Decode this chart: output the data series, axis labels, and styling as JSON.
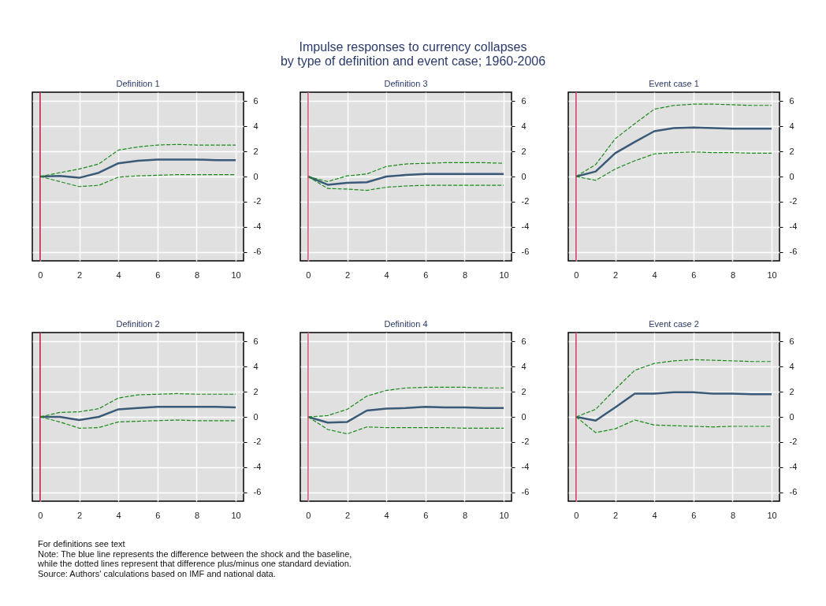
{
  "chart_data": [
    {
      "type": "other",
      "title": "Impulse responses to currency collapses",
      "subtitle": "by type of definition and event case; 1960-2006"
    },
    {
      "type": "line",
      "title": "Definition 1",
      "x": [
        0,
        1,
        2,
        3,
        4,
        5,
        6,
        7,
        8,
        9,
        10
      ],
      "xlim": [
        -0.4,
        10.4
      ],
      "xticks": [
        0,
        2,
        4,
        6,
        8,
        10
      ],
      "ylim": [
        -6.7,
        6.7
      ],
      "yticks": [
        -6,
        -4,
        -2,
        0,
        2,
        4,
        6
      ],
      "grid": true,
      "ref_lines": [
        {
          "axis": "x",
          "value": 0,
          "color": "#b0103a"
        }
      ],
      "series": [
        {
          "color": "#3a5a78",
          "line_style": "solid",
          "values": [
            0,
            0.05,
            -0.1,
            0.3,
            1.05,
            1.25,
            1.35,
            1.35,
            1.35,
            1.3,
            1.3
          ]
        },
        {
          "color": "#1a8a1a",
          "line_style": "dashed",
          "values": [
            0,
            0.3,
            0.6,
            1.0,
            2.1,
            2.35,
            2.5,
            2.55,
            2.5,
            2.5,
            2.5
          ]
        },
        {
          "color": "#1a8a1a",
          "line_style": "dashed",
          "values": [
            0,
            -0.4,
            -0.8,
            -0.7,
            -0.05,
            0.05,
            0.1,
            0.15,
            0.15,
            0.15,
            0.15
          ]
        }
      ]
    },
    {
      "type": "line",
      "title": "Definition 3",
      "x": [
        0,
        1,
        2,
        3,
        4,
        5,
        6,
        7,
        8,
        9,
        10
      ],
      "xlim": [
        -0.4,
        10.4
      ],
      "xticks": [
        0,
        2,
        4,
        6,
        8,
        10
      ],
      "ylim": [
        -6.7,
        6.7
      ],
      "yticks": [
        -6,
        -4,
        -2,
        0,
        2,
        4,
        6
      ],
      "grid": true,
      "ref_lines": [
        {
          "axis": "x",
          "value": 0,
          "color": "#d05070"
        }
      ],
      "series": [
        {
          "color": "#3a5a78",
          "line_style": "solid",
          "values": [
            0,
            -0.65,
            -0.5,
            -0.45,
            0.0,
            0.12,
            0.2,
            0.2,
            0.2,
            0.2,
            0.2
          ]
        },
        {
          "color": "#1a8a1a",
          "line_style": "dashed",
          "values": [
            0,
            -0.4,
            0.05,
            0.2,
            0.8,
            1.0,
            1.05,
            1.1,
            1.1,
            1.1,
            1.05
          ]
        },
        {
          "color": "#1a8a1a",
          "line_style": "dashed",
          "values": [
            0,
            -0.95,
            -1.0,
            -1.1,
            -0.85,
            -0.75,
            -0.7,
            -0.7,
            -0.7,
            -0.7,
            -0.7
          ]
        }
      ]
    },
    {
      "type": "line",
      "title": "Event case 1",
      "x": [
        0,
        1,
        2,
        3,
        4,
        5,
        6,
        7,
        8,
        9,
        10
      ],
      "xlim": [
        -0.4,
        10.4
      ],
      "xticks": [
        0,
        2,
        4,
        6,
        8,
        10
      ],
      "ylim": [
        -6.7,
        6.7
      ],
      "yticks": [
        -6,
        -4,
        -2,
        0,
        2,
        4,
        6
      ],
      "grid": true,
      "ref_lines": [
        {
          "axis": "x",
          "value": 0,
          "color": "#d0305a"
        }
      ],
      "series": [
        {
          "color": "#3a5a78",
          "line_style": "solid",
          "values": [
            0,
            0.4,
            1.85,
            2.75,
            3.6,
            3.85,
            3.9,
            3.85,
            3.8,
            3.8,
            3.8
          ]
        },
        {
          "color": "#1a8a1a",
          "line_style": "dashed",
          "values": [
            0,
            0.95,
            3.0,
            4.2,
            5.35,
            5.65,
            5.75,
            5.75,
            5.7,
            5.65,
            5.65
          ]
        },
        {
          "color": "#1a8a1a",
          "line_style": "dashed",
          "values": [
            0,
            -0.3,
            0.6,
            1.25,
            1.8,
            1.9,
            1.95,
            1.9,
            1.9,
            1.85,
            1.85
          ]
        }
      ]
    },
    {
      "type": "line",
      "title": "Definition 2",
      "x": [
        0,
        1,
        2,
        3,
        4,
        5,
        6,
        7,
        8,
        9,
        10
      ],
      "xlim": [
        -0.4,
        10.4
      ],
      "xticks": [
        0,
        2,
        4,
        6,
        8,
        10
      ],
      "ylim": [
        -6.7,
        6.7
      ],
      "yticks": [
        -6,
        -4,
        -2,
        0,
        2,
        4,
        6
      ],
      "grid": true,
      "ref_lines": [
        {
          "axis": "x",
          "value": 0,
          "color": "#b0103a"
        }
      ],
      "series": [
        {
          "color": "#3a5a78",
          "line_style": "solid",
          "values": [
            0,
            0.0,
            -0.25,
            0.0,
            0.6,
            0.7,
            0.8,
            0.8,
            0.8,
            0.8,
            0.75
          ]
        },
        {
          "color": "#1a8a1a",
          "line_style": "dashed",
          "values": [
            0,
            0.35,
            0.4,
            0.65,
            1.5,
            1.75,
            1.8,
            1.85,
            1.8,
            1.8,
            1.8
          ]
        },
        {
          "color": "#1a8a1a",
          "line_style": "dashed",
          "values": [
            0,
            -0.4,
            -0.9,
            -0.85,
            -0.4,
            -0.35,
            -0.3,
            -0.25,
            -0.3,
            -0.3,
            -0.3
          ]
        }
      ]
    },
    {
      "type": "line",
      "title": "Definition 4",
      "x": [
        0,
        1,
        2,
        3,
        4,
        5,
        6,
        7,
        8,
        9,
        10
      ],
      "xlim": [
        -0.4,
        10.4
      ],
      "xticks": [
        0,
        2,
        4,
        6,
        8,
        10
      ],
      "ylim": [
        -6.7,
        6.7
      ],
      "yticks": [
        -6,
        -4,
        -2,
        0,
        2,
        4,
        6
      ],
      "grid": true,
      "ref_lines": [
        {
          "axis": "x",
          "value": 0,
          "color": "#d05070"
        }
      ],
      "series": [
        {
          "color": "#3a5a78",
          "line_style": "solid",
          "values": [
            0,
            -0.45,
            -0.4,
            0.5,
            0.65,
            0.7,
            0.8,
            0.75,
            0.75,
            0.7,
            0.7
          ]
        },
        {
          "color": "#1a8a1a",
          "line_style": "dashed",
          "values": [
            0,
            0.1,
            0.6,
            1.65,
            2.1,
            2.3,
            2.35,
            2.35,
            2.35,
            2.3,
            2.3
          ]
        },
        {
          "color": "#1a8a1a",
          "line_style": "dashed",
          "values": [
            0,
            -1.0,
            -1.35,
            -0.8,
            -0.85,
            -0.85,
            -0.85,
            -0.85,
            -0.9,
            -0.9,
            -0.9
          ]
        }
      ]
    },
    {
      "type": "line",
      "title": "Event case 2",
      "x": [
        0,
        1,
        2,
        3,
        4,
        5,
        6,
        7,
        8,
        9,
        10
      ],
      "xlim": [
        -0.4,
        10.4
      ],
      "xticks": [
        0,
        2,
        4,
        6,
        8,
        10
      ],
      "ylim": [
        -6.7,
        6.7
      ],
      "yticks": [
        -6,
        -4,
        -2,
        0,
        2,
        4,
        6
      ],
      "grid": true,
      "ref_lines": [
        {
          "axis": "x",
          "value": 0,
          "color": "#d0305a"
        }
      ],
      "series": [
        {
          "color": "#3a5a78",
          "line_style": "solid",
          "values": [
            0,
            -0.3,
            0.75,
            1.85,
            1.85,
            1.95,
            1.95,
            1.85,
            1.85,
            1.8,
            1.8
          ]
        },
        {
          "color": "#1a8a1a",
          "line_style": "dashed",
          "values": [
            0,
            0.6,
            2.2,
            3.7,
            4.25,
            4.45,
            4.55,
            4.5,
            4.45,
            4.4,
            4.4
          ]
        },
        {
          "color": "#1a8a1a",
          "line_style": "dashed",
          "values": [
            0,
            -1.25,
            -0.95,
            -0.25,
            -0.65,
            -0.7,
            -0.75,
            -0.8,
            -0.75,
            -0.75,
            -0.75
          ]
        }
      ]
    },
    {
      "type": "other",
      "annotations": [
        "For definitions see text",
        "Note: The blue line represents the difference between the shock and the baseline,",
        "while the dotted lines represent that difference plus/minus one standard deviation.",
        "Source: Authors' calculations based on IMF and national data."
      ]
    }
  ]
}
